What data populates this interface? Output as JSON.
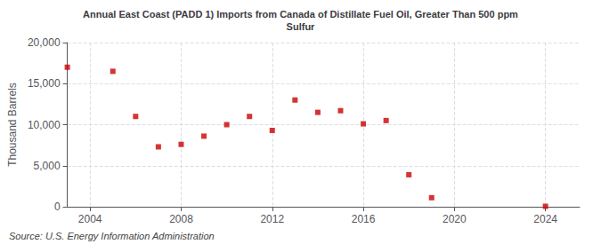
{
  "chart_data": {
    "type": "scatter",
    "title": "Annual East Coast (PADD 1) Imports from Canada of Distillate Fuel Oil, Greater Than 500 ppm\nSulfur",
    "ylabel": "Thousand Barrels",
    "annotation": "Source: U.S. Energy Information Administration",
    "x": [
      2003,
      2005,
      2006,
      2007,
      2008,
      2009,
      2010,
      2011,
      2012,
      2013,
      2014,
      2015,
      2016,
      2017,
      2018,
      2019,
      2024
    ],
    "values": [
      17000,
      16500,
      11000,
      7300,
      7600,
      8600,
      10000,
      11000,
      9300,
      13000,
      11500,
      11700,
      10100,
      10500,
      3900,
      1100,
      50
    ],
    "color": "#cc0000",
    "marker": "square",
    "xlim": [
      2003,
      2025.5
    ],
    "ylim": [
      0,
      20000
    ],
    "xticks": [
      2004,
      2008,
      2012,
      2016,
      2020,
      2024
    ],
    "yticks": [
      0,
      {
        "value": 5000,
        "label": "5,000"
      },
      {
        "value": 10000,
        "label": "10,000"
      },
      {
        "value": 15000,
        "label": "15,000"
      },
      {
        "value": 20000,
        "label": "20,000"
      }
    ],
    "grid": true
  }
}
